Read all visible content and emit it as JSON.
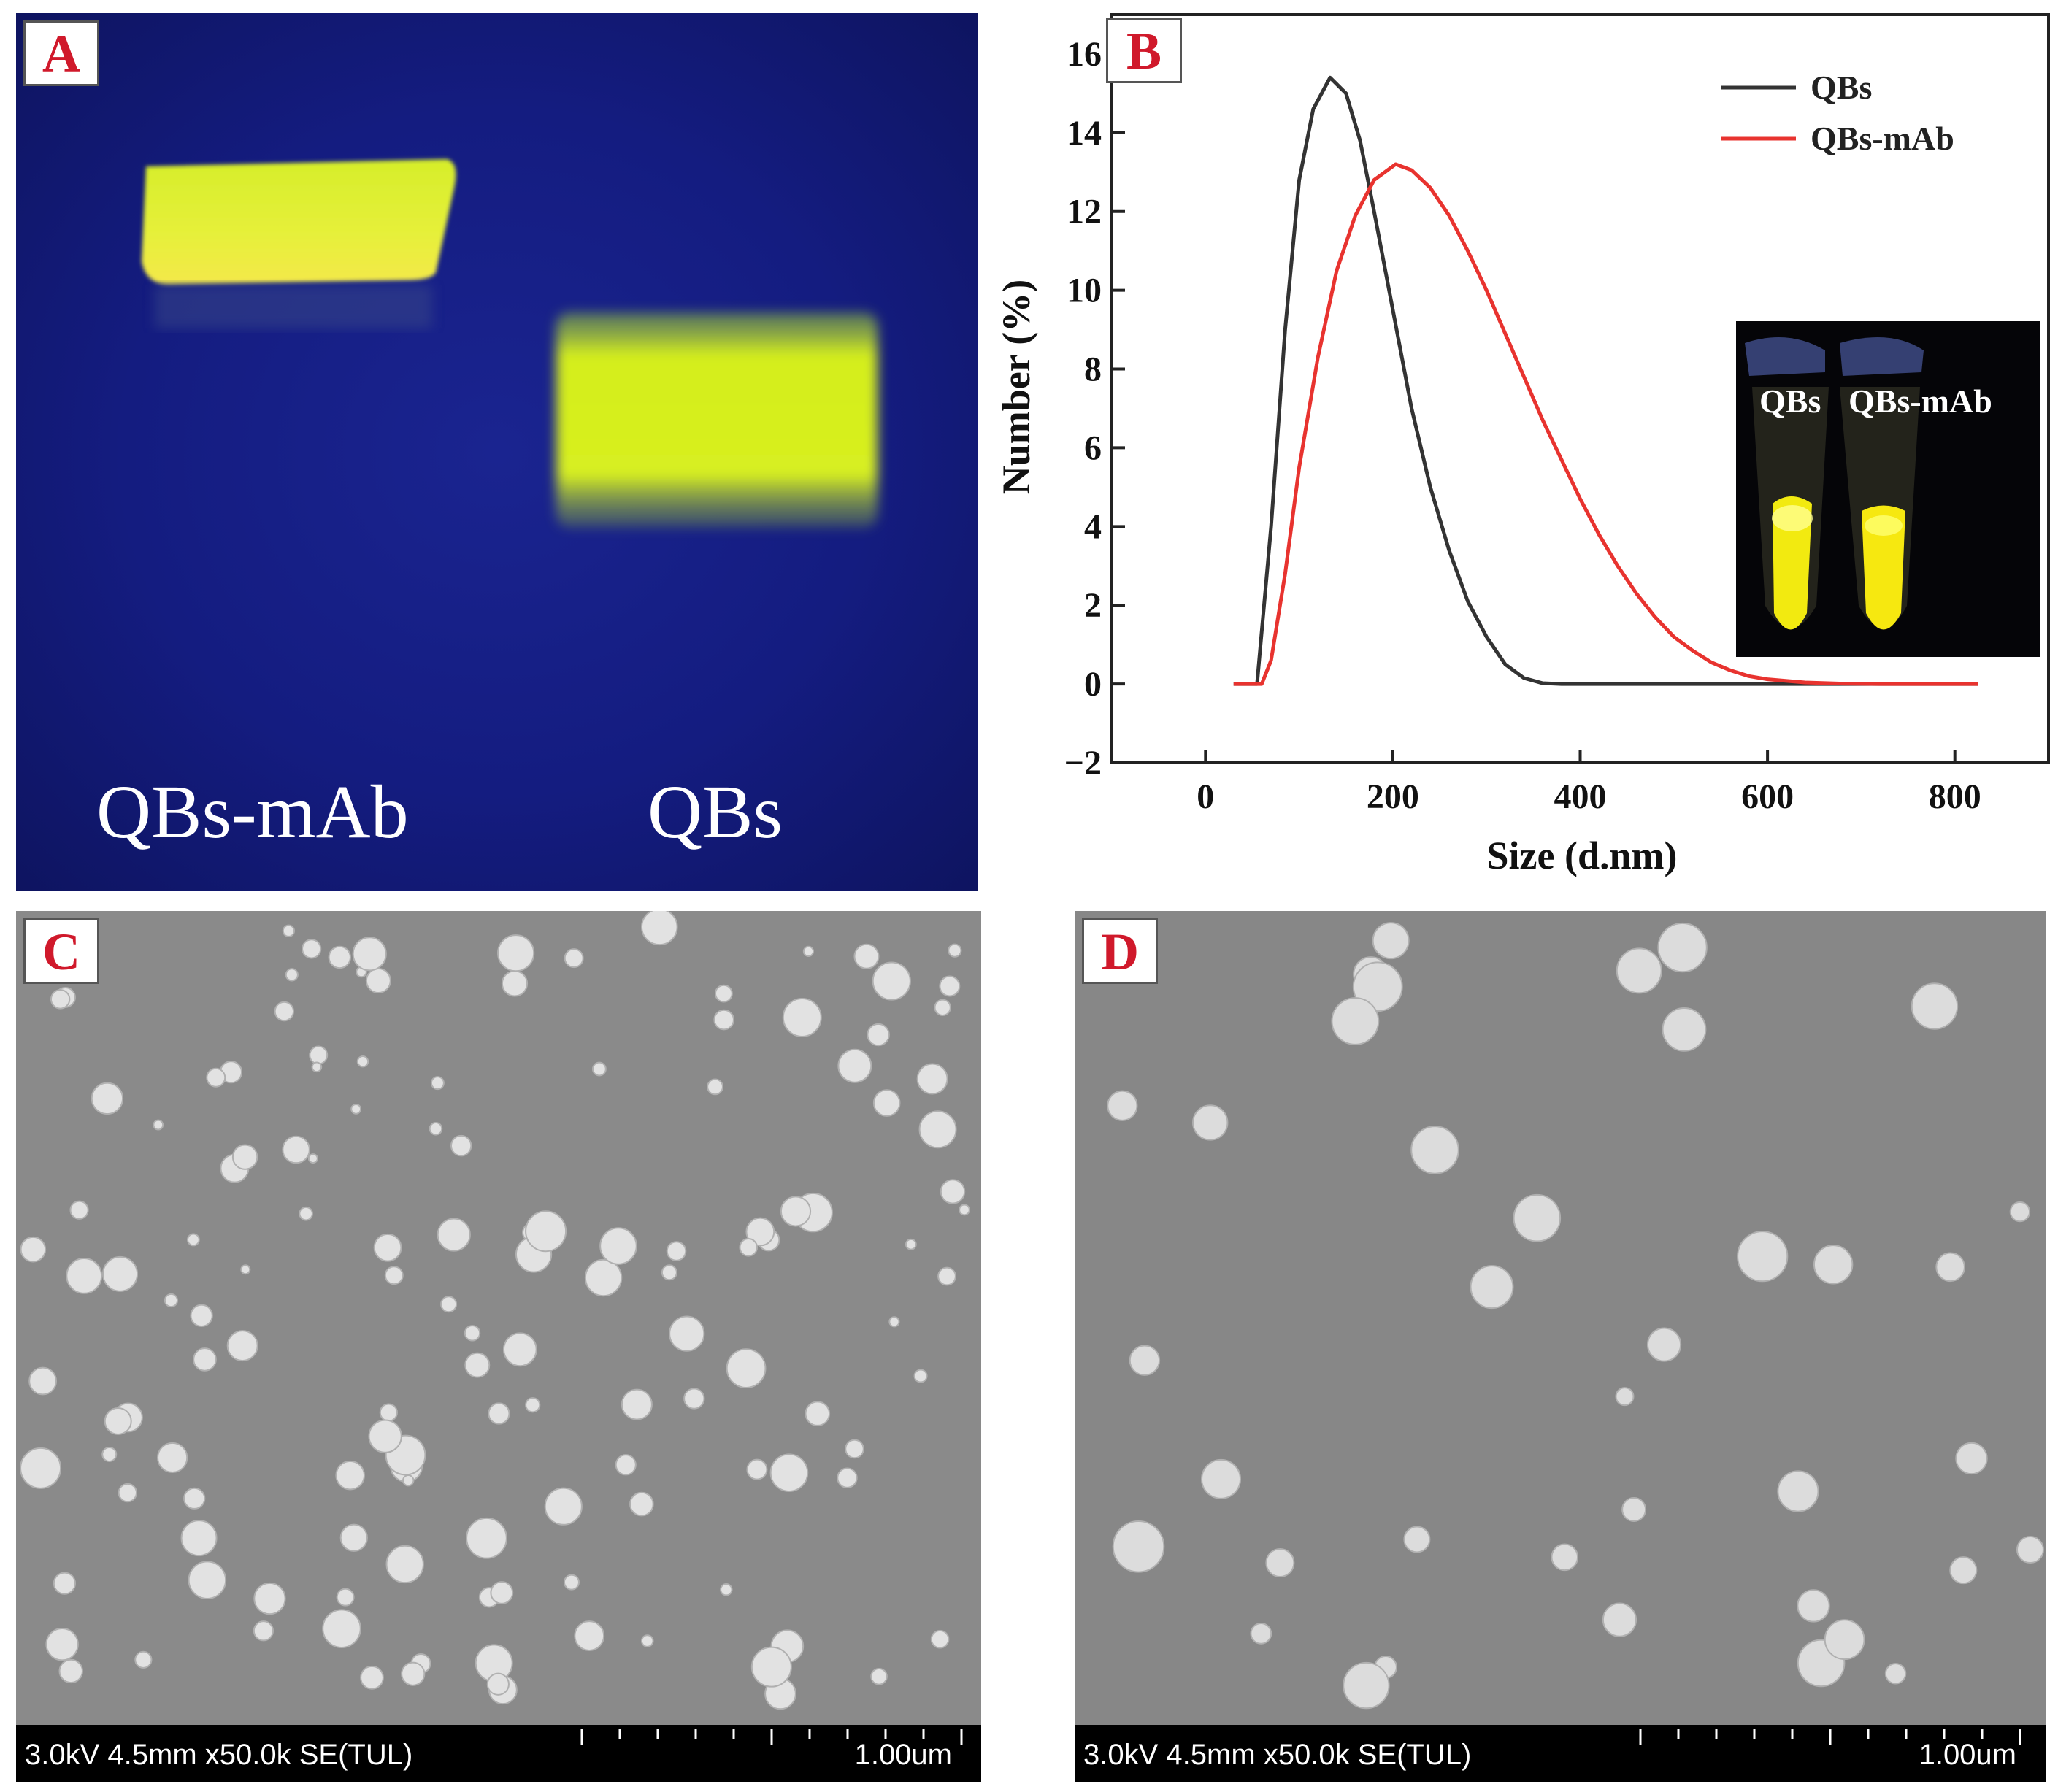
{
  "panels": {
    "a": {
      "label": "A",
      "lanes": [
        "QBs-mAb",
        "QBs"
      ],
      "band_color": "#e0f020",
      "background_color": "#161e84"
    },
    "b": {
      "label": "B",
      "xlabel": "Size (d.nm)",
      "ylabel": "Number (%)",
      "inset_labels": [
        "QBs",
        "QBs-mAb"
      ]
    },
    "c": {
      "label": "C",
      "sem_conditions": "3.0kV 4.5mm x50.0k SE(TUL)",
      "scale_label": "1.00um"
    },
    "d": {
      "label": "D",
      "sem_conditions": "3.0kV 4.5mm x50.0k SE(TUL)",
      "scale_label": "1.00um"
    }
  },
  "chart_data": {
    "type": "line",
    "xlabel": "Size (d.nm)",
    "ylabel": "Number (%)",
    "xlim": [
      -100,
      900
    ],
    "ylim": [
      -2,
      17
    ],
    "x_ticks": [
      0,
      200,
      400,
      600,
      800
    ],
    "y_ticks": [
      -2,
      0,
      2,
      4,
      6,
      8,
      10,
      12,
      14,
      16
    ],
    "legend_position": "top-right",
    "series": [
      {
        "name": "QBs",
        "color": "#333333",
        "points": [
          [
            30,
            0
          ],
          [
            55,
            0
          ],
          [
            70,
            4
          ],
          [
            85,
            9
          ],
          [
            100,
            12.8
          ],
          [
            115,
            14.6
          ],
          [
            133,
            15.4
          ],
          [
            150,
            15
          ],
          [
            165,
            13.8
          ],
          [
            180,
            12
          ],
          [
            200,
            9.5
          ],
          [
            220,
            7
          ],
          [
            240,
            5
          ],
          [
            260,
            3.4
          ],
          [
            280,
            2.1
          ],
          [
            300,
            1.2
          ],
          [
            320,
            0.5
          ],
          [
            340,
            0.15
          ],
          [
            360,
            0.02
          ],
          [
            380,
            0
          ],
          [
            600,
            0
          ],
          [
            825,
            0
          ]
        ]
      },
      {
        "name": "QBs-mAb",
        "color": "#e8332f",
        "points": [
          [
            30,
            0
          ],
          [
            60,
            0
          ],
          [
            70,
            0.6
          ],
          [
            85,
            2.8
          ],
          [
            100,
            5.5
          ],
          [
            120,
            8.3
          ],
          [
            140,
            10.5
          ],
          [
            160,
            11.9
          ],
          [
            180,
            12.8
          ],
          [
            203,
            13.2
          ],
          [
            220,
            13.05
          ],
          [
            240,
            12.6
          ],
          [
            260,
            11.9
          ],
          [
            280,
            11
          ],
          [
            300,
            10
          ],
          [
            320,
            8.9
          ],
          [
            340,
            7.8
          ],
          [
            360,
            6.7
          ],
          [
            380,
            5.7
          ],
          [
            400,
            4.7
          ],
          [
            420,
            3.8
          ],
          [
            440,
            3
          ],
          [
            460,
            2.3
          ],
          [
            480,
            1.7
          ],
          [
            500,
            1.2
          ],
          [
            520,
            0.85
          ],
          [
            540,
            0.55
          ],
          [
            560,
            0.35
          ],
          [
            580,
            0.2
          ],
          [
            600,
            0.12
          ],
          [
            640,
            0.04
          ],
          [
            680,
            0.01
          ],
          [
            720,
            0
          ],
          [
            825,
            0
          ]
        ]
      }
    ]
  }
}
